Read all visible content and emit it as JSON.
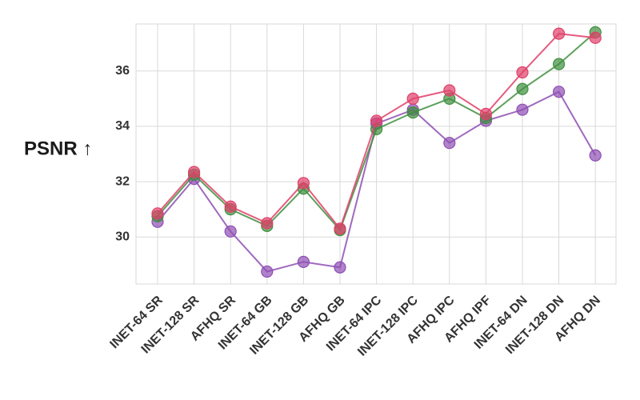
{
  "chart_data": {
    "type": "line",
    "title": "",
    "xlabel": "",
    "ylabel": "PSNR ↑",
    "categories": [
      "INET-64 SR",
      "INET-128 SR",
      "AFHQ SR",
      "INET-64 GB",
      "INET-128 GB",
      "AFHQ GB",
      "INET-64 IPC",
      "INET-128 IPC",
      "AFHQ IPC",
      "AFHQ IPF",
      "INET-64 DN",
      "INET-128 DN",
      "AFHQ DN"
    ],
    "yticks": [
      30,
      32,
      34,
      36
    ],
    "ylim": [
      28.3,
      37.7
    ],
    "grid": true,
    "legend": "none",
    "series": [
      {
        "color": "#8e4fb3",
        "values": [
          30.55,
          32.1,
          30.2,
          28.75,
          29.1,
          28.9,
          34.1,
          34.6,
          33.4,
          34.2,
          34.6,
          35.25,
          32.95
        ]
      },
      {
        "color": "#3f8f3f",
        "values": [
          30.75,
          32.25,
          31.0,
          30.4,
          31.75,
          30.25,
          33.9,
          34.5,
          35.0,
          34.3,
          35.35,
          36.25,
          37.4
        ]
      },
      {
        "color": "#e0406a",
        "values": [
          30.85,
          32.35,
          31.1,
          30.5,
          31.95,
          30.3,
          34.2,
          35.0,
          35.3,
          34.45,
          35.95,
          37.35,
          37.2
        ]
      }
    ]
  }
}
